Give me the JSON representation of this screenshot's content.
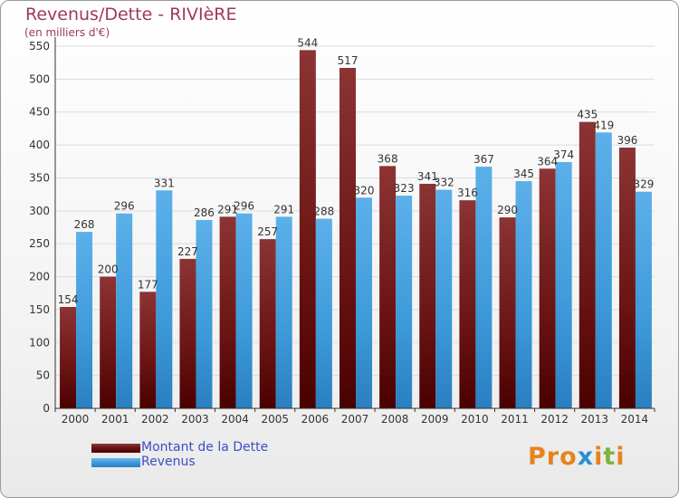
{
  "title": "Revenus/Dette - RIVIèRE",
  "subtitle": "(en milliers d'€)",
  "colors": {
    "dette": "#6b1414",
    "revenus": "#3d9ad8",
    "title": "#a03760",
    "legend_text": "#3b4fc4"
  },
  "chart_data": {
    "type": "bar",
    "categories": [
      "2000",
      "2001",
      "2002",
      "2003",
      "2004",
      "2005",
      "2006",
      "2007",
      "2008",
      "2009",
      "2010",
      "2011",
      "2012",
      "2013",
      "2014"
    ],
    "series": [
      {
        "name": "Montant de la Dette",
        "values": [
          154,
          200,
          177,
          227,
          291,
          257,
          544,
          517,
          368,
          341,
          316,
          290,
          364,
          435,
          396
        ]
      },
      {
        "name": "Revenus",
        "values": [
          268,
          296,
          331,
          286,
          296,
          291,
          288,
          320,
          323,
          332,
          367,
          345,
          374,
          419,
          329
        ]
      }
    ],
    "ylim": [
      0,
      550
    ],
    "yticks": [
      0,
      50,
      100,
      150,
      200,
      250,
      300,
      350,
      400,
      450,
      500,
      550
    ],
    "title": "Revenus/Dette - RIVIèRE",
    "ylabel": "(en milliers d'€)",
    "grid": true
  },
  "legend": {
    "items": [
      {
        "label": "Montant de la Dette"
      },
      {
        "label": "Revenus"
      }
    ]
  },
  "logo": {
    "text": "Proxiti"
  }
}
